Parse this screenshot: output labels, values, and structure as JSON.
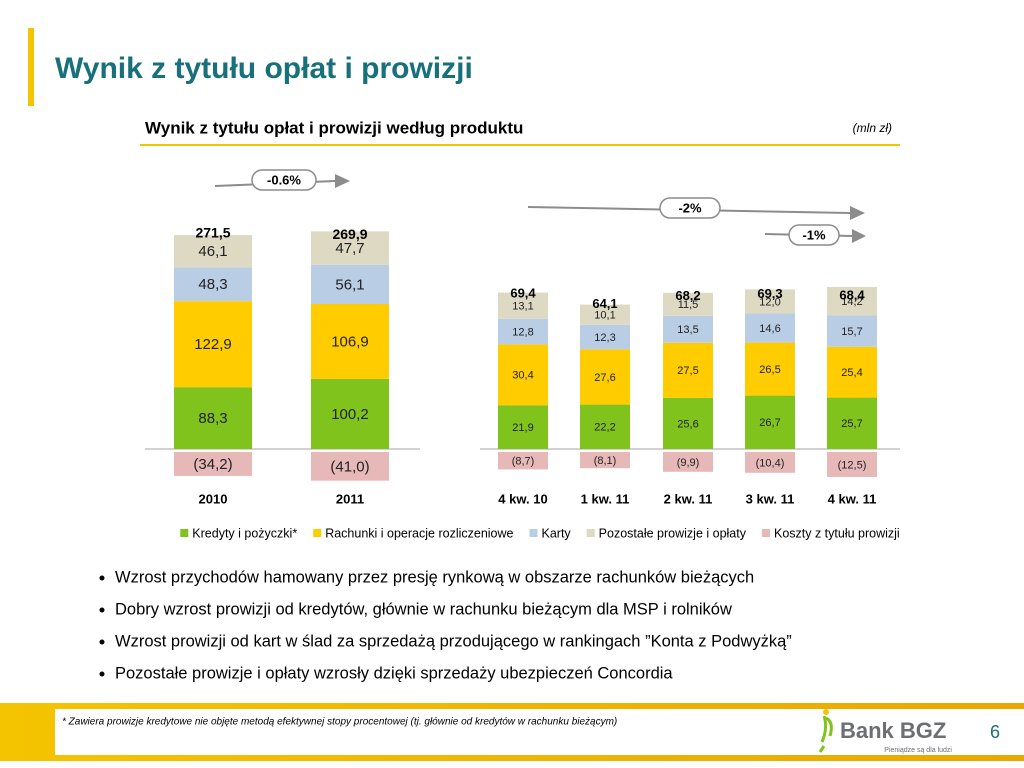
{
  "header": {
    "title": "Wynik z tytułu opłat i prowizji",
    "subtitle": "Wynik z tytułu opłat i prowizji według produktu",
    "unit": "(mln zł)"
  },
  "chart_data": [
    {
      "type": "stacked-bar",
      "categories": [
        "2010",
        "2011"
      ],
      "series": [
        {
          "color": "#80c31c",
          "values": [
            88.3,
            100.2
          ],
          "value_labels": [
            "88,3",
            "100,2"
          ]
        },
        {
          "color": "#ffcc00",
          "values": [
            122.9,
            106.9
          ],
          "value_labels": [
            "122,9",
            "106,9"
          ]
        },
        {
          "color": "#b9cde5",
          "values": [
            48.3,
            56.1
          ],
          "value_labels": [
            "48,3",
            "56,1"
          ]
        },
        {
          "color": "#ddd9c3",
          "values": [
            46.1,
            47.7
          ],
          "value_labels": [
            "46,1",
            "47,7"
          ]
        },
        {
          "color": "#e6b9b8",
          "values": [
            -34.2,
            -41.0
          ],
          "value_labels": [
            "(34,2)",
            "(41,0)"
          ]
        }
      ],
      "totals": [
        {
          "value": 271.5,
          "label": "271,5"
        },
        {
          "value": 269.9,
          "label": "269,9"
        }
      ],
      "annotations": [
        "-0.6%"
      ]
    },
    {
      "type": "stacked-bar",
      "categories": [
        "4 kw. 10",
        "1 kw. 11",
        "2 kw. 11",
        "3 kw. 11",
        "4 kw. 11"
      ],
      "series": [
        {
          "name": "Kredyty i pożyczki*",
          "color": "#80c31c",
          "values": [
            21.9,
            22.2,
            25.6,
            26.7,
            25.7
          ],
          "value_labels": [
            "21,9",
            "22,2",
            "25,6",
            "26,7",
            "25,7"
          ]
        },
        {
          "name": "Rachunki i operacje rozliczeniowe",
          "color": "#ffcc00",
          "values": [
            30.4,
            27.6,
            27.5,
            26.5,
            25.4
          ],
          "value_labels": [
            "30,4",
            "27,6",
            "27,5",
            "26,5",
            "25,4"
          ]
        },
        {
          "name": "Karty",
          "color": "#b9cde5",
          "values": [
            12.8,
            12.3,
            13.5,
            14.6,
            15.7
          ],
          "value_labels": [
            "12,8",
            "12,3",
            "13,5",
            "14,6",
            "15,7"
          ]
        },
        {
          "name": "Pozostałe prowizje i opłaty",
          "color": "#ddd9c3",
          "values": [
            13.1,
            10.1,
            11.5,
            12.0,
            14.2
          ],
          "value_labels": [
            "13,1",
            "10,1",
            "11,5",
            "12,0",
            "14,2"
          ]
        },
        {
          "name": "Koszty z tytułu prowizji",
          "color": "#e6b9b8",
          "values": [
            -8.7,
            -8.1,
            -9.9,
            -10.4,
            -12.5
          ],
          "value_labels": [
            "(8,7)",
            "(8,1)",
            "(9,9)",
            "(10,4)",
            "(12,5)"
          ]
        }
      ],
      "totals": [
        {
          "value": 69.4,
          "label": "69,4"
        },
        {
          "value": 64.1,
          "label": "64,1"
        },
        {
          "value": 68.2,
          "label": "68,2"
        },
        {
          "value": 69.3,
          "label": "69,3"
        },
        {
          "value": 68.4,
          "label": "68,4"
        }
      ],
      "annotations": [
        "-2%",
        "-1%"
      ]
    }
  ],
  "bullets": [
    "Wzrost przychodów hamowany przez presję rynkową w obszarze rachunków bieżących",
    "Dobry wzrost prowizji od kredytów, głównie w rachunku bieżącym dla MSP i rolników",
    "Wzrost prowizji od kart w ślad za sprzedażą przodującego w rankingach ”Konta z Podwyżką”",
    "Pozostałe prowizje i opłaty wzrosły dzięki sprzedaży ubezpieczeń Concordia"
  ],
  "footer": {
    "note": "* Zawiera prowizje kredytowe nie objęte metodą efektywnej stopy procentowej (tj. głównie od kredytów w rachunku bieżącym)",
    "brand": "Bank BGZ",
    "tagline": "Pieniądze są dla ludzi",
    "page": "6"
  }
}
